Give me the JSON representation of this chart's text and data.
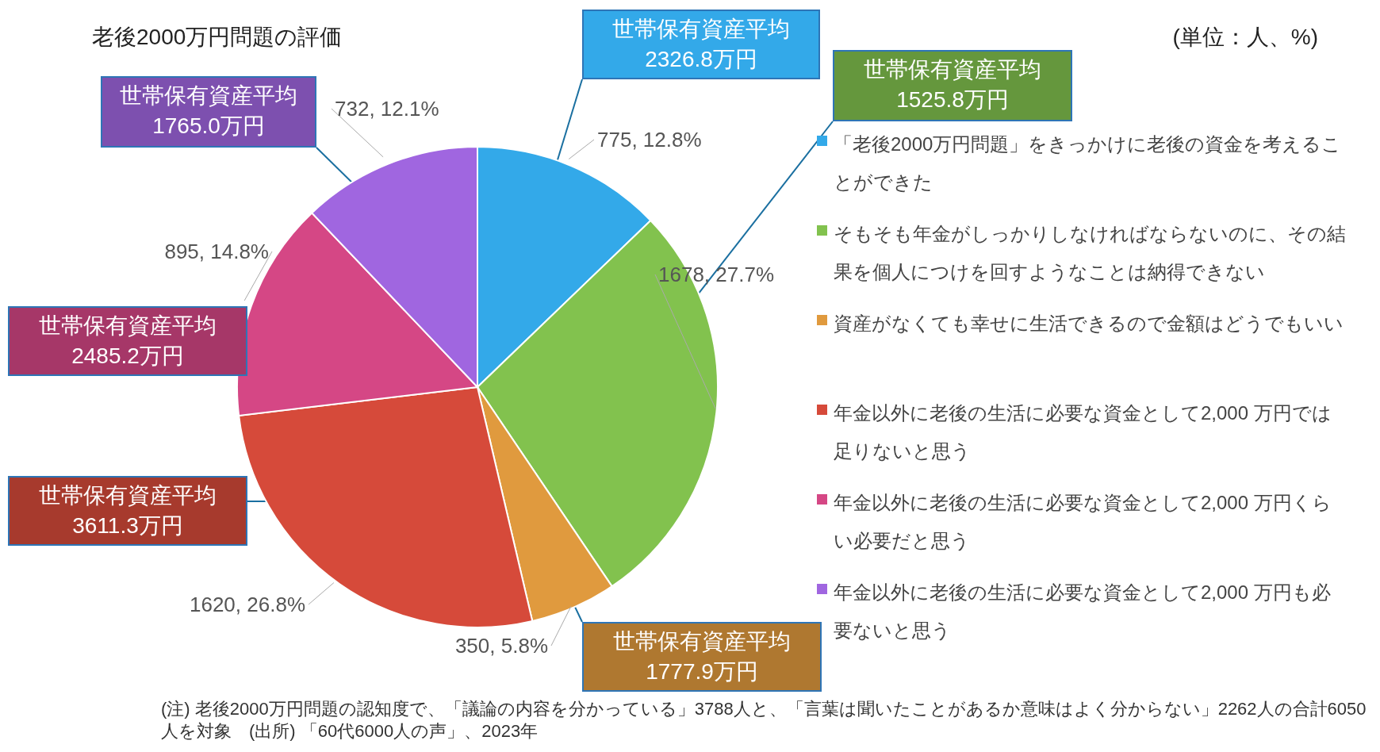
{
  "chart_data": {
    "type": "pie",
    "title": "老後2000万円問題の評価",
    "categories": [
      "「老後2000万円問題」をきっかけに老後の資金を考えることができた",
      "そもそも年金がしっかりしなければならないのに、その結果を個人につけを回すようなことは納得できない",
      "資産がなくても幸せに生活できるので金額はどうでもいい",
      "年金以外に老後の生活に必要な資金として2,000 万円では足りないと思う",
      "年金以外に老後の生活に必要な資金として2,000 万円くらい必要だと思う",
      "年金以外に老後の生活に必要な資金として2,000 万円も必要ないと思う"
    ],
    "values": [
      775,
      1678,
      350,
      1620,
      895,
      732
    ],
    "value_labels": [
      "775, 12.8%",
      "1678, 27.7%",
      "350, 5.8%",
      "1620, 26.8%",
      "895, 14.8%",
      "732, 12.1%"
    ],
    "colors": [
      "#33a9e9",
      "#82c24e",
      "#e09a3e",
      "#d64a3a",
      "#d54785",
      "#a066e0"
    ],
    "legend": "right",
    "annotations": [
      "世帯保有資産平均\n2326.8万円",
      "世帯保有資産平均\n1525.8万円",
      "世帯保有資産平均\n1777.9万円",
      "世帯保有資産平均\n3611.3万円",
      "世帯保有資産平均\n2485.2万円",
      "世帯保有資産平均\n1765.0万円",
      "(単位：人、%)",
      "(注) 老後2000万円問題の認知度で、「議論の内容を分かっている」3788人と、「言葉は聞いたことがあるか意味はよく分からない」2262人の合計6050人を対象　(出所) 「60代6000人の声」、2023年"
    ]
  }
}
